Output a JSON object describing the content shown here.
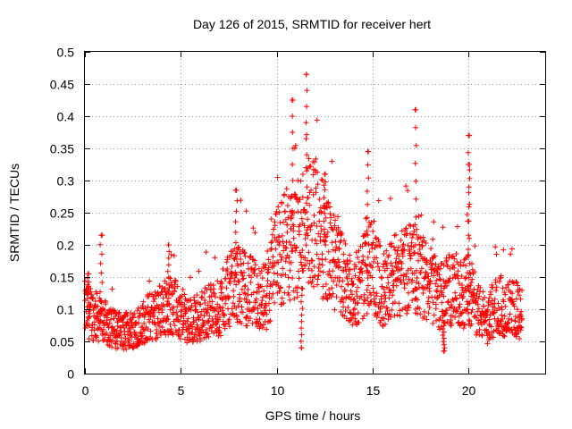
{
  "chart_data": {
    "type": "scatter",
    "title": "Day 126 of 2015, SRMTID for receiver hert",
    "xlabel": "GPS time / hours",
    "ylabel": "SRMTID / TECUs",
    "xlim": [
      0,
      24
    ],
    "ylim": [
      0,
      0.5
    ],
    "xticks": [
      0,
      5,
      10,
      15,
      20
    ],
    "xtick_labels": [
      "0",
      "5",
      "10",
      "15",
      "20"
    ],
    "yticks": [
      0,
      0.05,
      0.1,
      0.15,
      0.2,
      0.25,
      0.3,
      0.35,
      0.4,
      0.45,
      0.5
    ],
    "ytick_labels": [
      "0",
      "0.05",
      "0.1",
      "0.15",
      "0.2",
      "0.25",
      "0.3",
      "0.35",
      "0.4",
      "0.45",
      "0.5"
    ],
    "grid": true,
    "marker": "+",
    "color": "#ff0000",
    "series": [
      {
        "name": "SRMTID",
        "trend_x": [
          0,
          0.5,
          1,
          1.5,
          2,
          2.5,
          3,
          3.5,
          4,
          4.5,
          5,
          5.5,
          6,
          6.5,
          7,
          7.5,
          8,
          8.5,
          9,
          9.5,
          10,
          10.5,
          11,
          11.5,
          12,
          12.5,
          13,
          13.5,
          14,
          14.5,
          15,
          15.5,
          16,
          16.5,
          17,
          17.5,
          18,
          18.5,
          19,
          19.5,
          20,
          20.5,
          21,
          21.5,
          22,
          22.5,
          22.8
        ],
        "trend_y": [
          0.1,
          0.09,
          0.08,
          0.07,
          0.065,
          0.07,
          0.08,
          0.09,
          0.1,
          0.11,
          0.09,
          0.08,
          0.09,
          0.1,
          0.1,
          0.13,
          0.14,
          0.13,
          0.12,
          0.12,
          0.18,
          0.2,
          0.2,
          0.24,
          0.24,
          0.2,
          0.17,
          0.15,
          0.12,
          0.15,
          0.17,
          0.13,
          0.15,
          0.16,
          0.17,
          0.15,
          0.14,
          0.12,
          0.13,
          0.12,
          0.13,
          0.1,
          0.08,
          0.11,
          0.1,
          0.1,
          0.09
        ],
        "spikes": [
          {
            "x": 0.15,
            "y": 0.155
          },
          {
            "x": 0.85,
            "y": 0.215
          },
          {
            "x": 4.35,
            "y": 0.2
          },
          {
            "x": 7.9,
            "y": 0.285
          },
          {
            "x": 10.8,
            "y": 0.425
          },
          {
            "x": 11.55,
            "y": 0.465
          },
          {
            "x": 11.3,
            "y": 0.04
          },
          {
            "x": 12.5,
            "y": 0.31
          },
          {
            "x": 14.75,
            "y": 0.345
          },
          {
            "x": 17.25,
            "y": 0.41
          },
          {
            "x": 18.7,
            "y": 0.035
          },
          {
            "x": 20.0,
            "y": 0.37
          },
          {
            "x": 20.05,
            "y": 0.325
          }
        ]
      }
    ]
  }
}
